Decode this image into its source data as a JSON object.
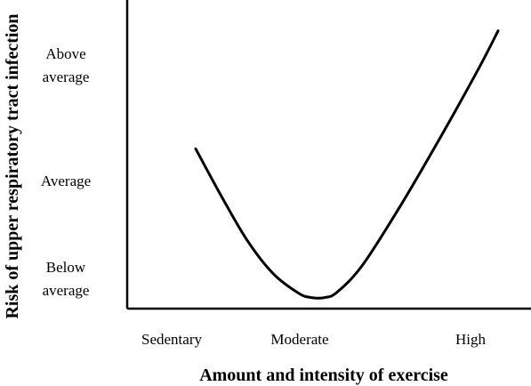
{
  "chart_data": {
    "type": "line",
    "title": "",
    "xlabel": "Amount and intensity of exercise",
    "ylabel": "Risk of upper respiratory tract infection",
    "x_ticks": [
      "Sedentary",
      "Moderate",
      "High"
    ],
    "y_ticks": [
      {
        "lines": [
          "Below",
          "average"
        ],
        "value": 1
      },
      {
        "lines": [
          "Average"
        ],
        "value": 2
      },
      {
        "lines": [
          "Above",
          "average"
        ],
        "value": 3
      }
    ],
    "xlim": [
      0,
      2.45
    ],
    "ylim": [
      0.6,
      3.4
    ],
    "grid": false,
    "legend": "none",
    "series": [
      {
        "x": [
          0,
          0.2,
          0.4,
          0.6,
          0.8,
          0.9,
          1.0,
          1.1,
          1.3,
          1.6,
          1.9,
          2.2,
          2.35
        ],
        "y": [
          2.05,
          1.62,
          1.22,
          0.92,
          0.74,
          0.7,
          0.7,
          0.75,
          1.0,
          1.55,
          2.15,
          2.78,
          3.12
        ],
        "color": "#000000"
      }
    ]
  }
}
